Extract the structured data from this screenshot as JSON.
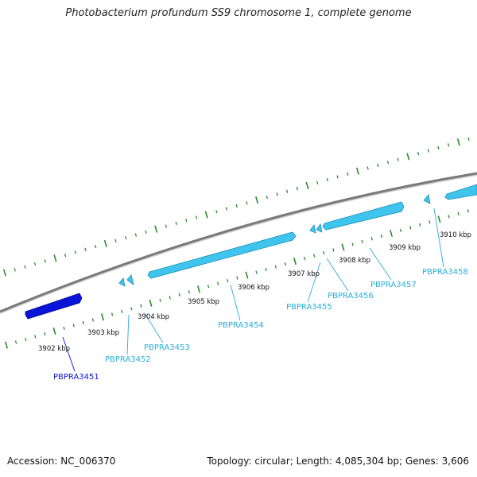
{
  "title": "Photobacterium profundum SS9 chromosome 1, complete genome",
  "footer": {
    "accession": "Accession: NC_006370",
    "summary": "Topology: circular; Length: 4,085,304 bp; Genes: 3,606"
  },
  "colors": {
    "backbone": "#7a7a7a",
    "tick": "#2a8a2a",
    "gene_selected": "#0a14d8",
    "gene": "#3fc4ee",
    "gene_edge": "#1b8fb8",
    "label_selected": "#0a14d8",
    "label": "#2aaed8",
    "kbp_label": "#111111"
  },
  "kbp_labels": [
    "3902 kbp",
    "3903 kbp",
    "3904 kbp",
    "3905 kbp",
    "3906 kbp",
    "3907 kbp",
    "3908 kbp",
    "3909 kbp",
    "3910 kbp"
  ],
  "genes": [
    {
      "name": "PBPRA3451",
      "selected": true
    },
    {
      "name": "PBPRA3452",
      "selected": false
    },
    {
      "name": "PBPRA3453",
      "selected": false
    },
    {
      "name": "PBPRA3454",
      "selected": false
    },
    {
      "name": "PBPRA3455",
      "selected": false
    },
    {
      "name": "PBPRA3456",
      "selected": false
    },
    {
      "name": "PBPRA3457",
      "selected": false
    },
    {
      "name": "PBPRA3458",
      "selected": false
    }
  ]
}
